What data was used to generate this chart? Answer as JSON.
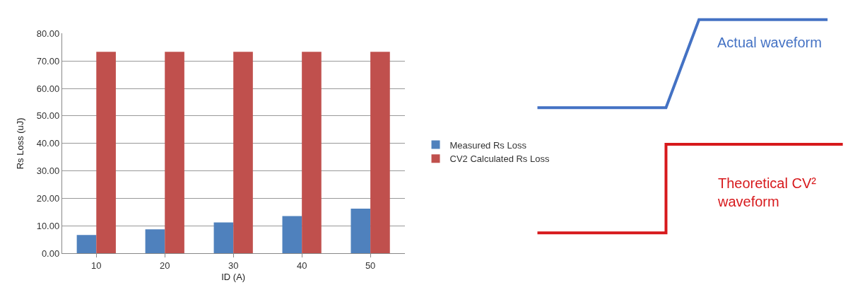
{
  "chart_data": [
    {
      "type": "bar",
      "xlabel": "ID (A)",
      "ylabel": "Rs Loss (uJ)",
      "categories": [
        "10",
        "20",
        "30",
        "40",
        "50"
      ],
      "series": [
        {
          "name": "Measured Rs Loss",
          "color": "#4f81bd",
          "values": [
            6.7,
            8.8,
            11.3,
            13.6,
            16.3
          ]
        },
        {
          "name": "CV2 Calculated Rs Loss",
          "color": "#c0504d",
          "values": [
            73.3,
            73.3,
            73.3,
            73.3,
            73.3
          ]
        }
      ],
      "ylim": [
        0,
        80
      ],
      "yticks": [
        {
          "value": 0,
          "label": "0.00"
        },
        {
          "value": 10,
          "label": "10.00"
        },
        {
          "value": 20,
          "label": "20.00"
        },
        {
          "value": 30,
          "label": "30.00"
        },
        {
          "value": 40,
          "label": "40.00"
        },
        {
          "value": 50,
          "label": "50.00"
        },
        {
          "value": 60,
          "label": "60.00"
        },
        {
          "value": 70,
          "label": "70.00"
        },
        {
          "value": 80,
          "label": "80.00"
        }
      ],
      "grid": "y",
      "legend": "right"
    },
    {
      "type": "other",
      "annotations": [
        "Actual waveform",
        "Theoretical CV² waveform"
      ]
    }
  ]
}
